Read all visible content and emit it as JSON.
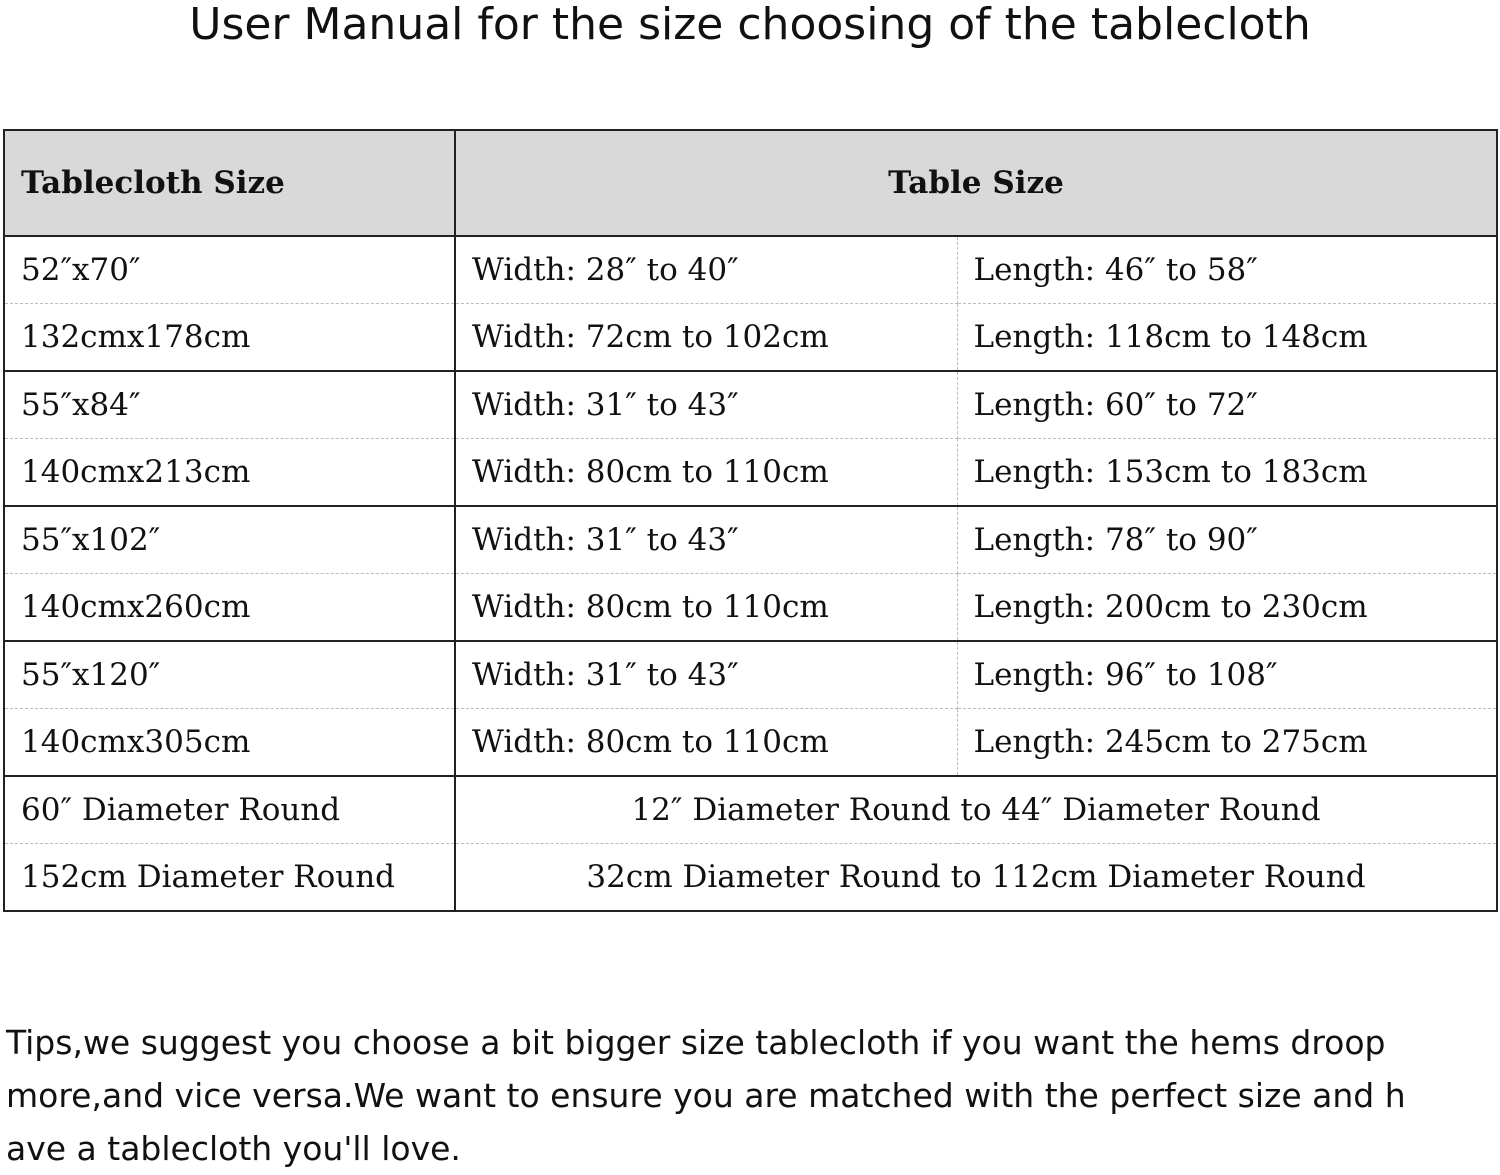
{
  "title": "User Manual for the size choosing of the tablecloth",
  "table": {
    "headers": {
      "tablecloth_size": "Tablecloth Size",
      "table_size": "Table Size"
    },
    "rows": [
      {
        "tablecloth": "52″x70″",
        "width": "Width: 28″ to 40″",
        "length": "Length: 46″ to 58″"
      },
      {
        "tablecloth": "132cmx178cm",
        "width": "Width: 72cm to 102cm",
        "length": "Length: 118cm to 148cm"
      },
      {
        "tablecloth": "55″x84″",
        "width": "Width: 31″ to 43″",
        "length": "Length: 60″ to 72″"
      },
      {
        "tablecloth": "140cmx213cm",
        "width": "Width: 80cm to 110cm",
        "length": "Length: 153cm to 183cm"
      },
      {
        "tablecloth": "55″x102″",
        "width": "Width: 31″ to 43″",
        "length": "Length: 78″ to 90″"
      },
      {
        "tablecloth": "140cmx260cm",
        "width": "Width: 80cm to 110cm",
        "length": "Length: 200cm to 230cm"
      },
      {
        "tablecloth": "55″x120″",
        "width": "Width: 31″ to 43″",
        "length": "Length: 96″ to 108″"
      },
      {
        "tablecloth": "140cmx305cm",
        "width": "Width: 80cm to 110cm",
        "length": "Length: 245cm to 275cm"
      }
    ],
    "round_rows": [
      {
        "tablecloth": "60″ Diameter Round",
        "table": "12″ Diameter Round to 44″ Diameter Round"
      },
      {
        "tablecloth": "152cm Diameter Round",
        "table": "32cm Diameter Round to 112cm Diameter Round"
      }
    ]
  },
  "tips": {
    "line1": "Tips,we suggest you choose a bit bigger size tablecloth if you want the hems droop",
    "line2": "more,and vice versa.We want to ensure you are matched with the perfect size and h",
    "line3": "ave a tablecloth you'll love."
  }
}
